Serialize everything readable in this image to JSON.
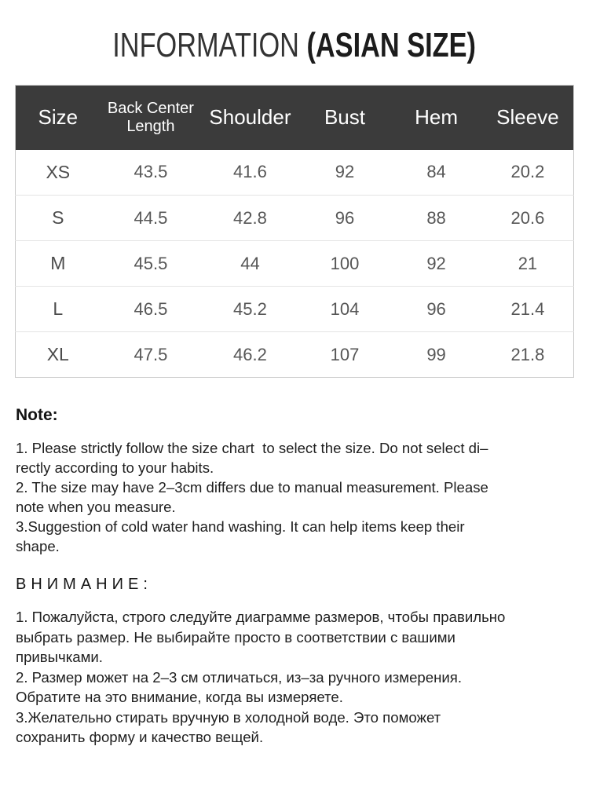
{
  "title": {
    "prefix": "INFORMATION ",
    "emphasis": "(ASIAN SIZE)"
  },
  "size_chart": {
    "columns": [
      "Size",
      "Back Center\nLength",
      "Shoulder",
      "Bust",
      "Hem",
      "Sleeve"
    ],
    "rows": [
      {
        "size": "XS",
        "values": [
          "43.5",
          "41.6",
          "92",
          "84",
          "20.2"
        ]
      },
      {
        "size": "S",
        "values": [
          "44.5",
          "42.8",
          "96",
          "88",
          "20.6"
        ]
      },
      {
        "size": "M",
        "values": [
          "45.5",
          "44",
          "100",
          "92",
          "21"
        ]
      },
      {
        "size": "L",
        "values": [
          "46.5",
          "45.2",
          "104",
          "96",
          "21.4"
        ]
      },
      {
        "size": "XL",
        "values": [
          "47.5",
          "46.2",
          "107",
          "99",
          "21.8"
        ]
      }
    ]
  },
  "note": {
    "heading": "Note:",
    "items": [
      "1. Please strictly follow the size chart  to select the size. Do not select di–\nrectly according to your habits.",
      "2. The size may have 2–3cm differs due to manual measurement. Please\nnote when you measure.",
      "3.Suggestion of cold water hand washing. It can help items keep their\nshape."
    ]
  },
  "attention": {
    "heading": "ВНИМАНИЕ:",
    "items": [
      "1. Пожалуйста, строго следуйте диаграмме размеров, чтобы правильно\nвыбрать размер. Не выбирайте просто в соответствии с вашими\nпривычками.",
      "2. Размер может на 2–3 см отличаться, из–за ручного измерения.\nОбратите на это внимание, когда вы измеряете.",
      "3.Желательно стирать вручную в холодной воде. Это поможет\nсохранить форму и качество вещей."
    ]
  },
  "colors": {
    "header_bg": "#3b3b3b",
    "header_text": "#ffffff",
    "body_text": "#565656",
    "border": "#c9c9c9",
    "divider": "#e4e4e4",
    "text": "#1f1f1f"
  }
}
